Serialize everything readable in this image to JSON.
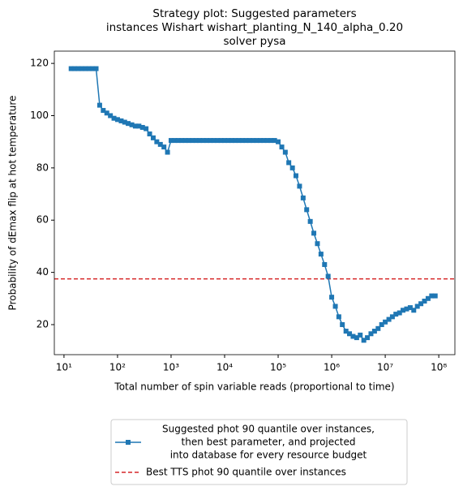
{
  "chart_data": {
    "type": "line",
    "title": [
      "Strategy plot: Suggested parameters",
      "instances Wishart wishart_planting_N_140_alpha_0.20",
      "solver pysa"
    ],
    "xlabel": "Total number of spin variable reads (proportional to time)",
    "ylabel": "Probability of dEmax flip at hot temperature",
    "xscale": "log",
    "xlim": [
      6.6,
      200000000
    ],
    "ylim": [
      8.5,
      124.7
    ],
    "xticks": [
      {
        "value": 10,
        "label": "10¹"
      },
      {
        "value": 100,
        "label": "10²"
      },
      {
        "value": 1000,
        "label": "10³"
      },
      {
        "value": 10000,
        "label": "10⁴"
      },
      {
        "value": 100000,
        "label": "10⁵"
      },
      {
        "value": 1000000,
        "label": "10⁶"
      },
      {
        "value": 10000000,
        "label": "10⁷"
      },
      {
        "value": 100000000,
        "label": "10⁸"
      }
    ],
    "yticks": [
      20,
      40,
      60,
      80,
      100,
      120
    ],
    "x": [
      13.6,
      15.8,
      18.5,
      21.5,
      25.1,
      29.3,
      34.1,
      39.8,
      46.4,
      54.1,
      63.1,
      73.6,
      85.8,
      100,
      117,
      136,
      158,
      185,
      215,
      251,
      293,
      341,
      398,
      464,
      541,
      631,
      736,
      858,
      1000,
      1170,
      1360,
      1580,
      1850,
      2150,
      2510,
      2930,
      3410,
      3980,
      4640,
      5410,
      6310,
      7360,
      8580,
      10000,
      11700,
      13600,
      15800,
      18500,
      21500,
      25100,
      29300,
      34100,
      39800,
      46400,
      54100,
      63100,
      73600,
      85800,
      100000,
      117000,
      136000,
      158000,
      185000,
      215000,
      251000,
      293000,
      341000,
      398000,
      464000,
      541000,
      631000,
      736000,
      858000,
      1000000,
      1170000,
      1360000,
      1580000,
      1850000,
      2150000,
      2510000,
      2930000,
      3410000,
      3980000,
      4640000,
      5410000,
      6310000,
      7360000,
      8580000,
      10000000,
      11700000,
      13600000,
      15800000,
      18500000,
      21500000,
      25100000,
      29300000,
      34100000,
      39800000,
      46400000,
      54100000,
      63100000,
      73600000,
      85800000
    ],
    "series": [
      {
        "name": [
          "Suggested phot 90 quantile over instances,",
          "then best parameter, and projected",
          "into database for every resource budget"
        ],
        "color": "#1f77b4",
        "marker": "square",
        "values": [
          118,
          118,
          118,
          118,
          118,
          118,
          118,
          118,
          104,
          102,
          101,
          100,
          99,
          98.5,
          98,
          97.5,
          97,
          96.5,
          96,
          96,
          95.5,
          95,
          93,
          91.5,
          90,
          89,
          88,
          86,
          90.5,
          90.5,
          90.5,
          90.5,
          90.5,
          90.5,
          90.5,
          90.5,
          90.5,
          90.5,
          90.5,
          90.5,
          90.5,
          90.5,
          90.5,
          90.5,
          90.5,
          90.5,
          90.5,
          90.5,
          90.5,
          90.5,
          90.5,
          90.5,
          90.5,
          90.5,
          90.5,
          90.5,
          90.5,
          90.5,
          90,
          88,
          86,
          82,
          80,
          77,
          73,
          68.5,
          64,
          59.5,
          55,
          51,
          47,
          43,
          38.5,
          30.5,
          27,
          23,
          20,
          17.5,
          16.5,
          15.5,
          15,
          16,
          14,
          15,
          16.5,
          17.5,
          18.5,
          20,
          21,
          22,
          23,
          24,
          24.5,
          25.5,
          26,
          26.5,
          25.5,
          27,
          28,
          29,
          30,
          31,
          31
        ]
      }
    ],
    "reference_lines": [
      {
        "name": "Best TTS phot 90 quantile over instances",
        "color": "#d62728",
        "value": 37.5,
        "style": "dashed"
      }
    ],
    "legend": "below"
  }
}
